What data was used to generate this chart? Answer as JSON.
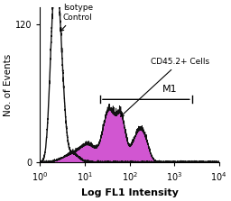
{
  "xlabel": "Log FL1 Intensity",
  "ylabel": "No. of Events",
  "xlim": [
    1.0,
    10000.0
  ],
  "ylim": [
    0,
    135
  ],
  "yticks": [
    0,
    120
  ],
  "xtick_vals": [
    1,
    10,
    100,
    1000,
    10000
  ],
  "isotype_label": "Isotype\nControl",
  "cd45_label": "CD45.2+ Cells",
  "m1_label": "M1",
  "m1_start": 22,
  "m1_end": 2500,
  "fill_color": "#CC44CC",
  "fill_alpha": 0.9,
  "line_color": "#111111",
  "background_color": "#ffffff",
  "figsize": [
    2.56,
    2.23
  ],
  "dpi": 100
}
